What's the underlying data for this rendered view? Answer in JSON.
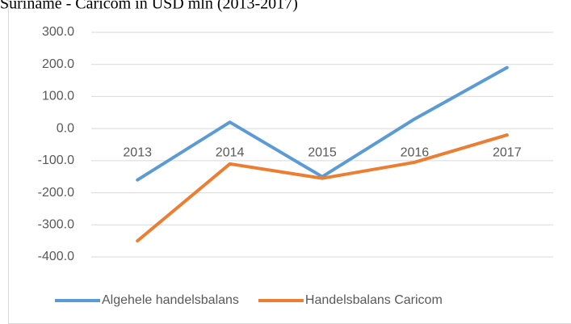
{
  "chart_data": {
    "type": "line",
    "title": "Suriname - Caricom in USD mln (2013-2017)",
    "categories": [
      "2013",
      "2014",
      "2015",
      "2016",
      "2017"
    ],
    "series": [
      {
        "name": "Algehele handelsbalans",
        "color": "#5b9bd5",
        "values": [
          -160,
          20,
          -150,
          30,
          190
        ]
      },
      {
        "name": "Handelsbalans Caricom",
        "color": "#ed7d31",
        "values": [
          -350,
          -110,
          -155,
          -105,
          -20
        ]
      }
    ],
    "ylim": [
      -400,
      300
    ],
    "yticks": [
      {
        "value": -400,
        "label": "-400.0"
      },
      {
        "value": -300,
        "label": "-300.0"
      },
      {
        "value": -200,
        "label": "-200.0"
      },
      {
        "value": -100,
        "label": "-100.0"
      },
      {
        "value": 0,
        "label": "0.0"
      },
      {
        "value": 100,
        "label": "100.0"
      },
      {
        "value": 200,
        "label": "200.0"
      },
      {
        "value": 300,
        "label": "300.0"
      }
    ],
    "grid": true,
    "legend": "bottom"
  }
}
